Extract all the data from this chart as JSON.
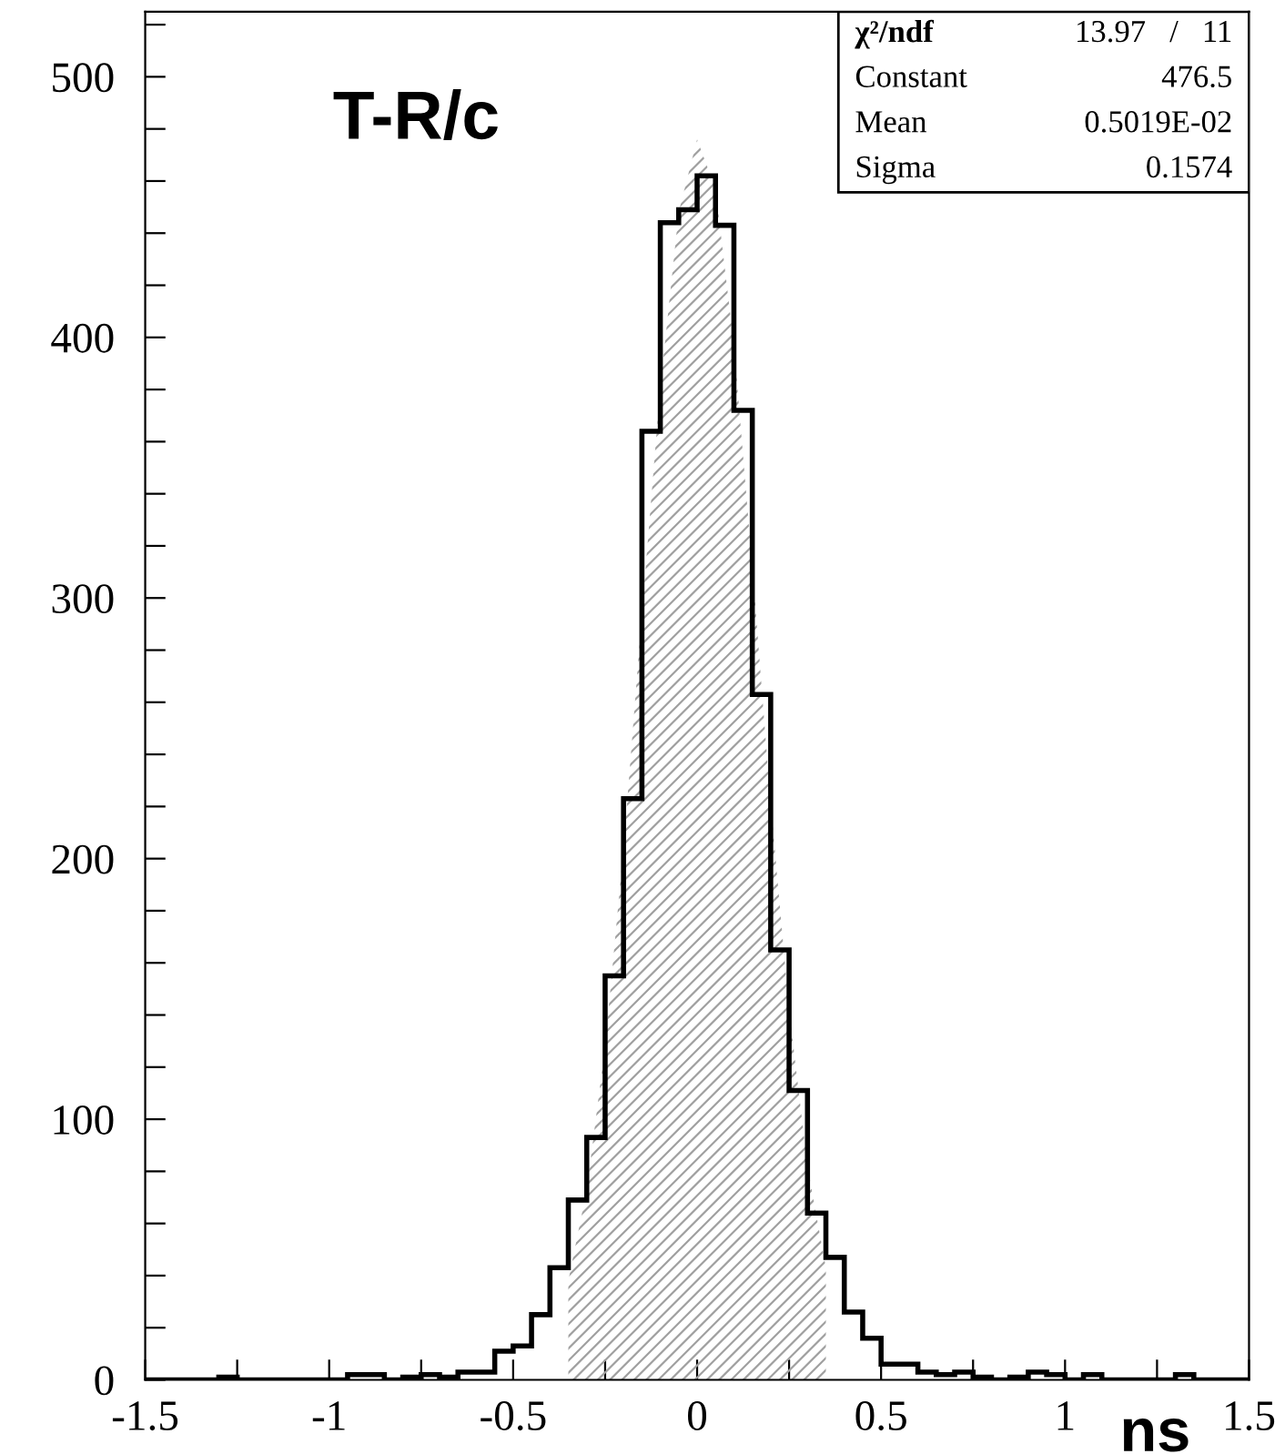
{
  "chart_data": {
    "type": "histogram",
    "title": "T-R/c",
    "xlabel": "ns",
    "color": "#000000",
    "bins": [
      -1.5,
      -1.45,
      -1.4,
      -1.35,
      -1.3,
      -1.25,
      -1.2,
      -1.15,
      -1.1,
      -1.05,
      -1.0,
      -0.95,
      -0.9,
      -0.85,
      -0.8,
      -0.75,
      -0.7,
      -0.65,
      -0.6,
      -0.55,
      -0.5,
      -0.45,
      -0.4,
      -0.35,
      -0.3,
      -0.25,
      -0.2,
      -0.15,
      -0.1,
      -0.05,
      0.0,
      0.05,
      0.1,
      0.15,
      0.2,
      0.25,
      0.3,
      0.35,
      0.4,
      0.45,
      0.5,
      0.55,
      0.6,
      0.65,
      0.7,
      0.75,
      0.8,
      0.85,
      0.9,
      0.95,
      1.0,
      1.05,
      1.1,
      1.15,
      1.2,
      1.25,
      1.3,
      1.35,
      1.4,
      1.45,
      1.5
    ],
    "values": [
      0,
      0,
      0,
      0,
      1,
      0,
      0,
      0,
      0,
      0,
      0,
      2,
      2,
      0,
      1,
      2,
      1,
      3,
      3,
      11,
      13,
      25,
      43,
      69,
      93,
      155,
      223,
      364,
      444,
      449,
      462,
      443,
      372,
      263,
      165,
      111,
      64,
      47,
      26,
      16,
      6,
      6,
      3,
      2,
      3,
      1,
      0,
      1,
      3,
      2,
      0,
      2,
      0,
      0,
      0,
      0,
      2,
      0,
      0,
      0
    ],
    "series": [
      {
        "type": "area",
        "color": "#a0a0a0",
        "x": [
          -0.35,
          -0.3,
          -0.25,
          -0.2,
          -0.15,
          -0.1,
          -0.05,
          0.0,
          0.05,
          0.1,
          0.15,
          0.2,
          0.25,
          0.3,
          0.35
        ],
        "values": [
          38,
          73,
          128,
          204,
          294,
          381,
          448,
          476,
          457,
          397,
          312,
          221,
          142,
          82,
          43
        ]
      }
    ],
    "xlim": [
      -1.5,
      1.5
    ],
    "xticks": [
      -1.5,
      {
        "value": -1.25,
        "label": null
      },
      -1,
      {
        "value": -0.75,
        "label": null
      },
      -0.5,
      {
        "value": -0.25,
        "label": null
      },
      0,
      {
        "value": 0.25,
        "label": null
      },
      0.5,
      {
        "value": 0.75,
        "label": null
      },
      1,
      {
        "value": 1.25,
        "label": null
      },
      1.5
    ],
    "ylim": [
      0,
      525
    ],
    "yticks": [
      0,
      {
        "value": 20,
        "label": null
      },
      {
        "value": 40,
        "label": null
      },
      {
        "value": 60,
        "label": null
      },
      {
        "value": 80,
        "label": null
      },
      100,
      {
        "value": 120,
        "label": null
      },
      {
        "value": 140,
        "label": null
      },
      {
        "value": 160,
        "label": null
      },
      {
        "value": 180,
        "label": null
      },
      200,
      {
        "value": 220,
        "label": null
      },
      {
        "value": 240,
        "label": null
      },
      {
        "value": 260,
        "label": null
      },
      {
        "value": 280,
        "label": null
      },
      300,
      {
        "value": 320,
        "label": null
      },
      {
        "value": 340,
        "label": null
      },
      {
        "value": 360,
        "label": null
      },
      {
        "value": 380,
        "label": null
      },
      400,
      {
        "value": 420,
        "label": null
      },
      {
        "value": 440,
        "label": null
      },
      {
        "value": 460,
        "label": null
      },
      {
        "value": 480,
        "label": null
      },
      500,
      {
        "value": 520,
        "label": null
      }
    ],
    "grid": false,
    "annotations": [
      "χ²/ndf",
      "13.97   /   11",
      "Constant",
      "476.5",
      "Mean",
      "0.5019E-02",
      "Sigma",
      "0.1574"
    ]
  }
}
